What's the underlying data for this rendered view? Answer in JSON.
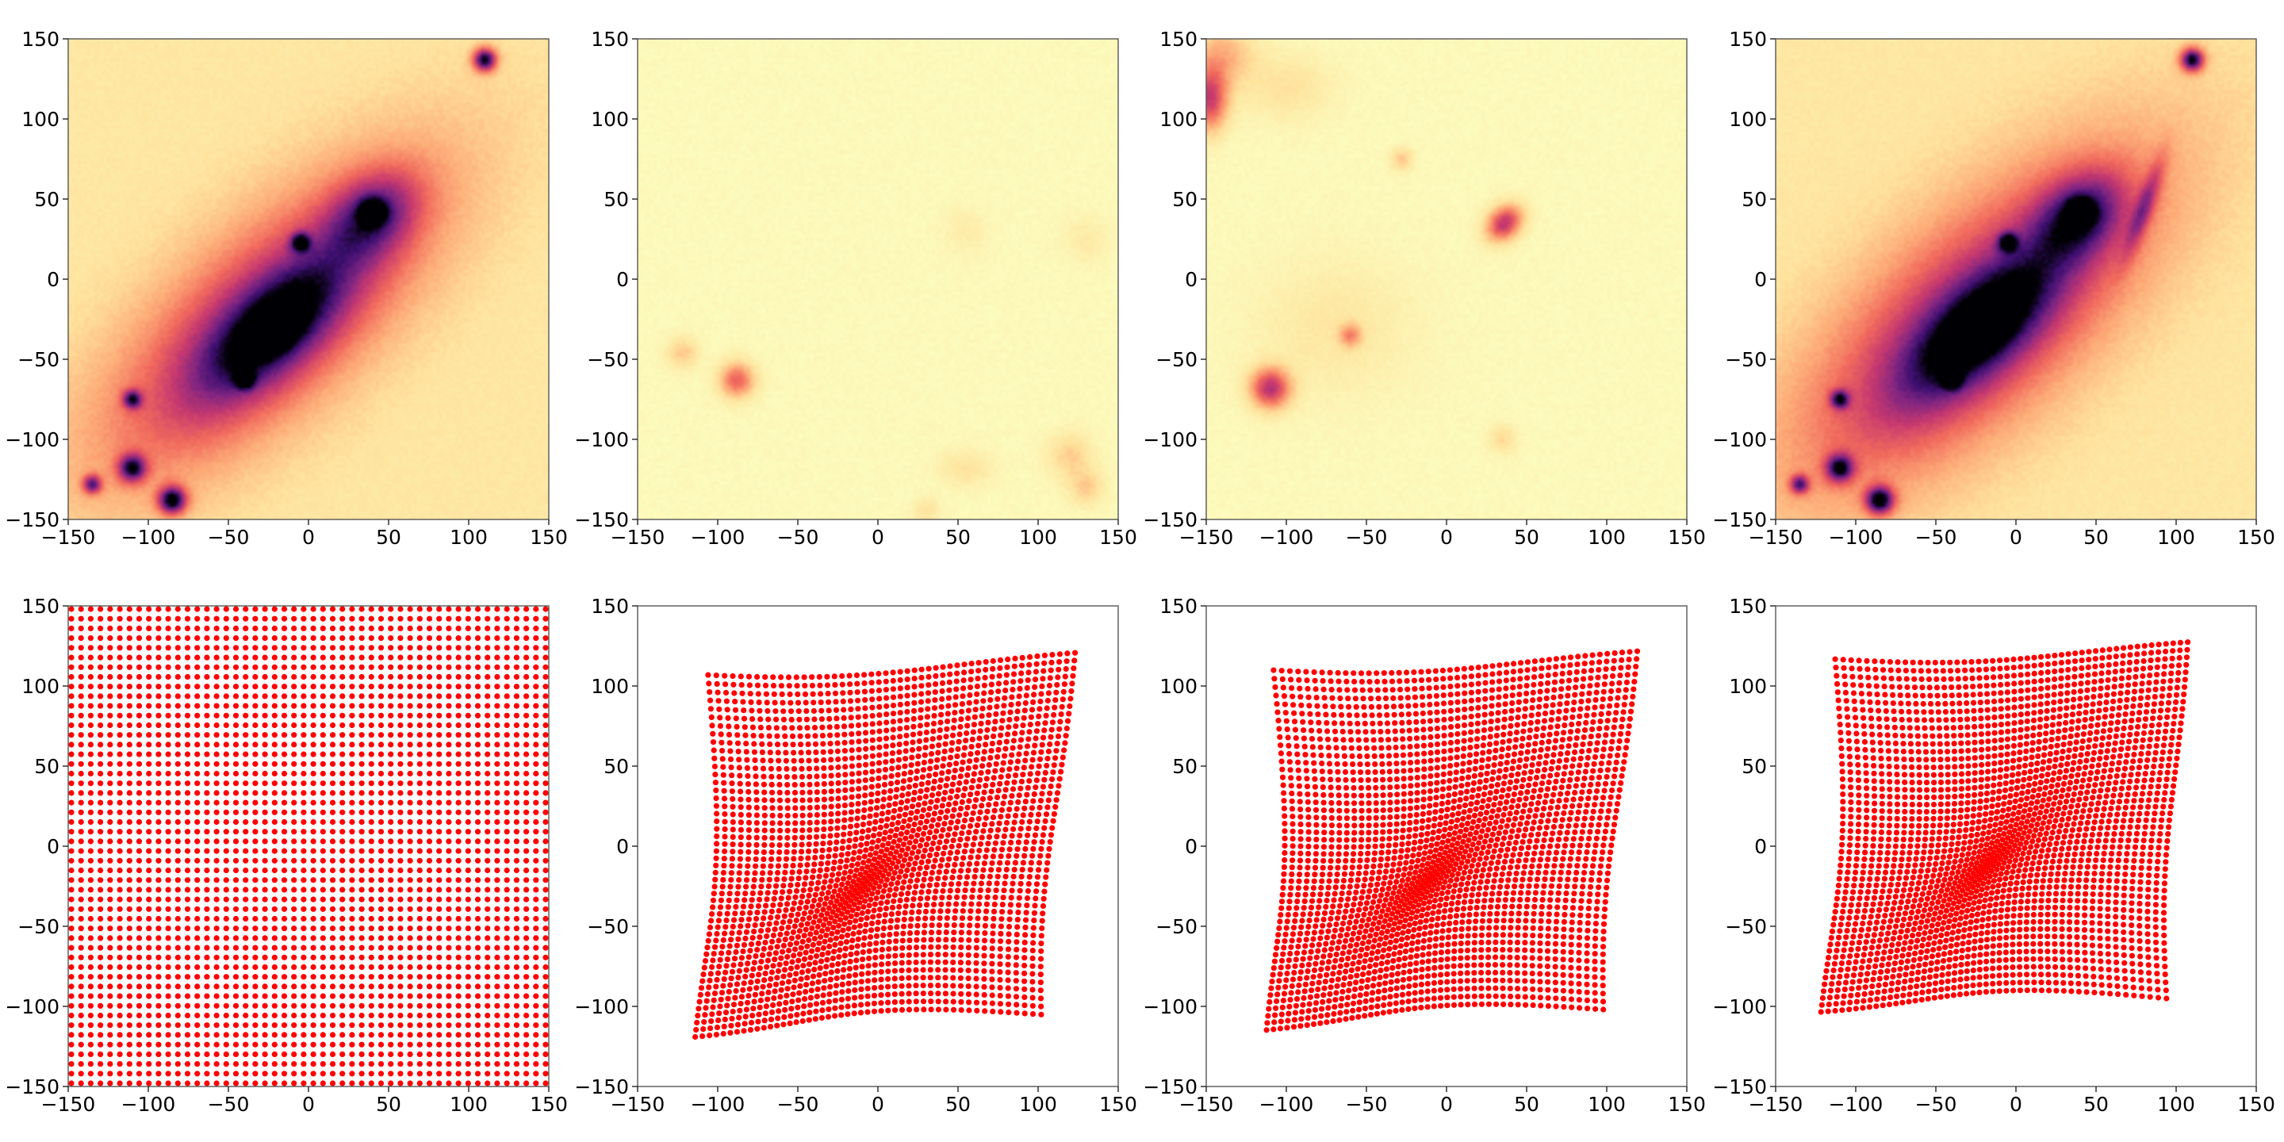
{
  "chart_data": [
    {
      "id": "panel-1",
      "type": "heatmap",
      "content": "density-map",
      "colormap": "magma_r",
      "xlim": [
        -150,
        150
      ],
      "ylim": [
        -150,
        150
      ],
      "x_ticks": [
        -150,
        -100,
        -50,
        0,
        50,
        100,
        150
      ],
      "y_ticks": [
        -150,
        -100,
        -50,
        0,
        50,
        100,
        150
      ],
      "blobs": [
        {
          "x": -25,
          "y": -25,
          "sx": 95,
          "sy": 38,
          "angle": 42,
          "w": 0.55
        },
        {
          "x": -22,
          "y": -30,
          "sx": 40,
          "sy": 18,
          "angle": 42,
          "w": 0.55
        },
        {
          "x": -22,
          "y": -32,
          "sx": 9,
          "sy": 6,
          "angle": 30,
          "w": 0.9
        },
        {
          "x": 40,
          "y": 40,
          "sx": 22,
          "sy": 16,
          "angle": 40,
          "w": 0.45
        },
        {
          "x": 40,
          "y": 42,
          "sx": 5,
          "sy": 5,
          "angle": 0,
          "w": 0.7
        },
        {
          "x": 110,
          "y": 137,
          "sx": 5,
          "sy": 5,
          "angle": 0,
          "w": 0.85
        },
        {
          "x": -85,
          "y": -138,
          "sx": 6,
          "sy": 6,
          "angle": 0,
          "w": 0.85
        },
        {
          "x": -110,
          "y": -118,
          "sx": 6,
          "sy": 6,
          "angle": 0,
          "w": 0.7
        },
        {
          "x": -135,
          "y": -128,
          "sx": 4,
          "sy": 4,
          "angle": 0,
          "w": 0.6
        },
        {
          "x": -110,
          "y": -75,
          "sx": 4,
          "sy": 4,
          "angle": 0,
          "w": 0.6
        },
        {
          "x": -40,
          "y": -62,
          "sx": 4,
          "sy": 4,
          "angle": 0,
          "w": 0.6
        },
        {
          "x": -5,
          "y": 23,
          "sx": 4,
          "sy": 4,
          "angle": 0,
          "w": 0.6
        }
      ]
    },
    {
      "id": "panel-2",
      "type": "heatmap",
      "content": "density-map",
      "colormap": "magma_r",
      "xlim": [
        -150,
        150
      ],
      "ylim": [
        -150,
        150
      ],
      "x_ticks": [
        -150,
        -100,
        -50,
        0,
        50,
        100,
        150
      ],
      "y_ticks": [
        -150,
        -100,
        -50,
        0,
        50,
        100,
        150
      ],
      "blobs": [
        {
          "x": -88,
          "y": -63,
          "sx": 8,
          "sy": 8,
          "angle": 0,
          "w": 0.45
        },
        {
          "x": -122,
          "y": -46,
          "sx": 7,
          "sy": 7,
          "angle": 0,
          "w": 0.2
        },
        {
          "x": 55,
          "y": -118,
          "sx": 12,
          "sy": 8,
          "angle": 0,
          "w": 0.12
        },
        {
          "x": 120,
          "y": -110,
          "sx": 10,
          "sy": 10,
          "angle": 0,
          "w": 0.18
        },
        {
          "x": 130,
          "y": -130,
          "sx": 8,
          "sy": 8,
          "angle": 0,
          "w": 0.18
        },
        {
          "x": 30,
          "y": -145,
          "sx": 6,
          "sy": 6,
          "angle": 0,
          "w": 0.12
        },
        {
          "x": 130,
          "y": 25,
          "sx": 10,
          "sy": 10,
          "angle": 0,
          "w": 0.08
        },
        {
          "x": 55,
          "y": 30,
          "sx": 10,
          "sy": 10,
          "angle": 0,
          "w": 0.07
        }
      ]
    },
    {
      "id": "panel-3",
      "type": "heatmap",
      "content": "density-map",
      "colormap": "magma_r",
      "xlim": [
        -150,
        150
      ],
      "ylim": [
        -150,
        150
      ],
      "x_ticks": [
        -150,
        -100,
        -50,
        0,
        50,
        100,
        150
      ],
      "y_ticks": [
        -150,
        -100,
        -50,
        0,
        50,
        100,
        150
      ],
      "blobs": [
        {
          "x": -148,
          "y": 112,
          "sx": 8,
          "sy": 14,
          "angle": 0,
          "w": 0.55
        },
        {
          "x": -140,
          "y": 140,
          "sx": 14,
          "sy": 14,
          "angle": 0,
          "w": 0.25
        },
        {
          "x": -110,
          "y": -68,
          "sx": 9,
          "sy": 9,
          "angle": 0,
          "w": 0.6
        },
        {
          "x": 36,
          "y": 35,
          "sx": 9,
          "sy": 7,
          "angle": 45,
          "w": 0.6
        },
        {
          "x": -70,
          "y": -30,
          "sx": 35,
          "sy": 30,
          "angle": 0,
          "w": 0.1
        },
        {
          "x": -60,
          "y": -35,
          "sx": 5,
          "sy": 5,
          "angle": 0,
          "w": 0.3
        },
        {
          "x": -100,
          "y": 120,
          "sx": 20,
          "sy": 15,
          "angle": 0,
          "w": 0.12
        },
        {
          "x": -28,
          "y": 75,
          "sx": 5,
          "sy": 5,
          "angle": 0,
          "w": 0.2
        },
        {
          "x": 35,
          "y": -100,
          "sx": 6,
          "sy": 6,
          "angle": 0,
          "w": 0.15
        }
      ]
    },
    {
      "id": "panel-4",
      "type": "heatmap",
      "content": "density-map",
      "colormap": "magma_r",
      "xlim": [
        -150,
        150
      ],
      "ylim": [
        -150,
        150
      ],
      "x_ticks": [
        -150,
        -100,
        -50,
        0,
        50,
        100,
        150
      ],
      "y_ticks": [
        -150,
        -100,
        -50,
        0,
        50,
        100,
        150
      ],
      "blobs": [
        {
          "x": -25,
          "y": -25,
          "sx": 100,
          "sy": 42,
          "angle": 42,
          "w": 0.58
        },
        {
          "x": -22,
          "y": -30,
          "sx": 42,
          "sy": 18,
          "angle": 42,
          "w": 0.58
        },
        {
          "x": -22,
          "y": -32,
          "sx": 9,
          "sy": 6,
          "angle": 30,
          "w": 0.9
        },
        {
          "x": 40,
          "y": 40,
          "sx": 22,
          "sy": 16,
          "angle": 40,
          "w": 0.5
        },
        {
          "x": 40,
          "y": 42,
          "sx": 5,
          "sy": 5,
          "angle": 0,
          "w": 0.7
        },
        {
          "x": 80,
          "y": 45,
          "sx": 4,
          "sy": 22,
          "angle": -20,
          "w": 0.35
        },
        {
          "x": 110,
          "y": 137,
          "sx": 5,
          "sy": 5,
          "angle": 0,
          "w": 0.85
        },
        {
          "x": -85,
          "y": -138,
          "sx": 6,
          "sy": 6,
          "angle": 0,
          "w": 0.85
        },
        {
          "x": -110,
          "y": -118,
          "sx": 6,
          "sy": 6,
          "angle": 0,
          "w": 0.7
        },
        {
          "x": -135,
          "y": -128,
          "sx": 4,
          "sy": 4,
          "angle": 0,
          "w": 0.6
        },
        {
          "x": -110,
          "y": -75,
          "sx": 4,
          "sy": 4,
          "angle": 0,
          "w": 0.6
        },
        {
          "x": -40,
          "y": -62,
          "sx": 4,
          "sy": 4,
          "angle": 0,
          "w": 0.6
        },
        {
          "x": -5,
          "y": 23,
          "sx": 4,
          "sy": 4,
          "angle": 0,
          "w": 0.6
        }
      ]
    },
    {
      "id": "panel-5",
      "type": "scatter",
      "content": "grid",
      "marker_color": "#ff0000",
      "grid_size": 50,
      "range": [
        -148,
        148
      ],
      "xlim": [
        -150,
        150
      ],
      "ylim": [
        -150,
        150
      ],
      "x_ticks": [
        -150,
        -100,
        -50,
        0,
        50,
        100,
        150
      ],
      "y_ticks": [
        -150,
        -100,
        -50,
        0,
        50,
        100,
        150
      ]
    },
    {
      "id": "panel-6",
      "type": "scatter",
      "content": "deflected-grid",
      "marker_color": "#ff0000",
      "grid_size": 50,
      "range": [
        -148,
        148
      ],
      "center": [
        -10,
        -25
      ],
      "corners": [
        [
          -128,
          130
        ],
        [
          126,
          126
        ],
        [
          126,
          -128
        ],
        [
          -120,
          -122
        ]
      ],
      "lens_strength": 0.35,
      "xlim": [
        -150,
        150
      ],
      "ylim": [
        -150,
        150
      ],
      "x_ticks": [
        -150,
        -100,
        -50,
        0,
        50,
        100,
        150
      ],
      "y_ticks": [
        -150,
        -100,
        -50,
        0,
        50,
        100,
        150
      ]
    },
    {
      "id": "panel-7",
      "type": "scatter",
      "content": "deflected-grid",
      "marker_color": "#ff0000",
      "grid_size": 50,
      "range": [
        -148,
        148
      ],
      "center": [
        -12,
        -22
      ],
      "corners": [
        [
          -130,
          133
        ],
        [
          122,
          127
        ],
        [
          122,
          -125
        ],
        [
          -118,
          -118
        ]
      ],
      "lens_strength": 0.35,
      "xlim": [
        -150,
        150
      ],
      "ylim": [
        -150,
        150
      ],
      "x_ticks": [
        -150,
        -100,
        -50,
        0,
        50,
        100,
        150
      ],
      "y_ticks": [
        -150,
        -100,
        -50,
        0,
        50,
        100,
        150
      ]
    },
    {
      "id": "panel-8",
      "type": "scatter",
      "content": "deflected-grid",
      "marker_color": "#ff0000",
      "grid_size": 50,
      "range": [
        -148,
        148
      ],
      "center": [
        -18,
        -12
      ],
      "corners": [
        [
          -135,
          140
        ],
        [
          110,
          133
        ],
        [
          118,
          -118
        ],
        [
          -128,
          -106
        ]
      ],
      "lens_strength": 0.35,
      "xlim": [
        -150,
        150
      ],
      "ylim": [
        -150,
        150
      ],
      "x_ticks": [
        -150,
        -100,
        -50,
        0,
        50,
        100,
        150
      ],
      "y_ticks": [
        -150,
        -100,
        -50,
        0,
        50,
        100,
        150
      ]
    }
  ]
}
